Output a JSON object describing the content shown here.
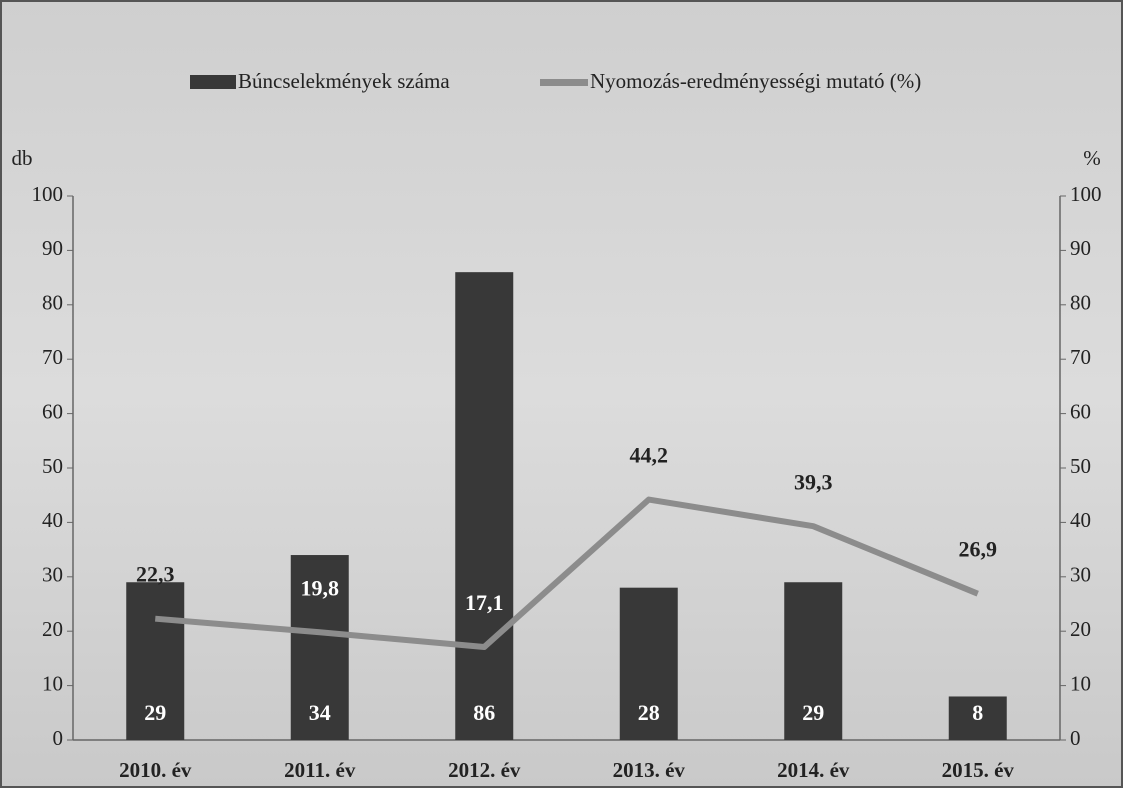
{
  "chart_data": {
    "type": "bar",
    "categories": [
      "2010. év",
      "2011. év",
      "2012. év",
      "2013. év",
      "2014. év",
      "2015. év"
    ],
    "series": [
      {
        "name": "Búncselekmények száma",
        "type": "bar",
        "color": "#383838",
        "values": [
          29,
          34,
          86,
          28,
          29,
          8
        ]
      },
      {
        "name": "Nyomozás-eredményességi mutató (%)",
        "type": "line",
        "axis": "y2",
        "color": "#8c8c8c",
        "values": [
          22.3,
          19.8,
          17.1,
          44.2,
          39.3,
          26.9
        ],
        "value_labels": [
          "22,3",
          "19,8",
          "17,1",
          "44,2",
          "39,3",
          "26,9"
        ]
      }
    ],
    "y_label": "db",
    "y2_label": "%",
    "ylim": [
      0,
      100
    ],
    "yticks": [
      0,
      10,
      20,
      30,
      40,
      50,
      60,
      70,
      80,
      90,
      100
    ],
    "y2lim": [
      0,
      100
    ],
    "y2ticks": [
      0,
      10,
      20,
      30,
      40,
      50,
      60,
      70,
      80,
      90,
      100
    ],
    "legend": "top"
  }
}
